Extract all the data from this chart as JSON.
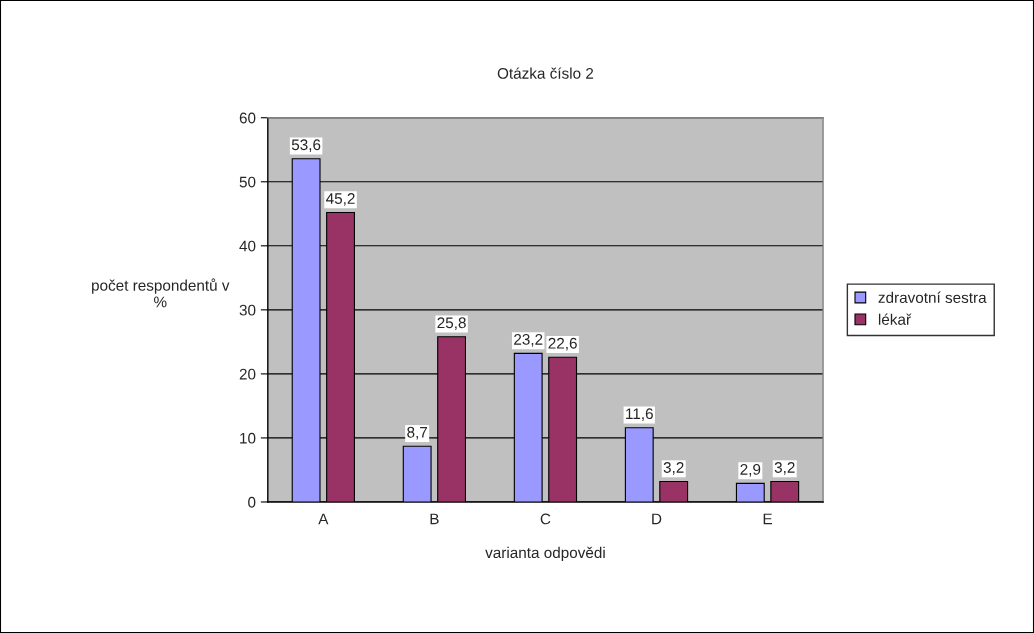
{
  "chart_data": {
    "type": "bar",
    "title": "Otázka číslo 2",
    "xlabel": "varianta odpovědi",
    "ylabel": "počet respondentů v\n%",
    "categories": [
      "A",
      "B",
      "C",
      "D",
      "E"
    ],
    "series": [
      {
        "name": "zdravotní sestra",
        "color": "#9999ff",
        "values": [
          53.6,
          8.7,
          23.2,
          11.6,
          2.9
        ],
        "value_labels": [
          "53,6",
          "8,7",
          "23,2",
          "11,6",
          "2,9"
        ]
      },
      {
        "name": "lékař",
        "color": "#993366",
        "values": [
          45.2,
          25.8,
          22.6,
          3.2,
          3.2
        ],
        "value_labels": [
          "45,2",
          "25,8",
          "22,6",
          "3,2",
          "3,2"
        ]
      }
    ],
    "ylim": [
      0,
      60
    ],
    "yticks": [
      0,
      10,
      20,
      30,
      40,
      50,
      60
    ],
    "grid": "y",
    "legend": "right"
  }
}
